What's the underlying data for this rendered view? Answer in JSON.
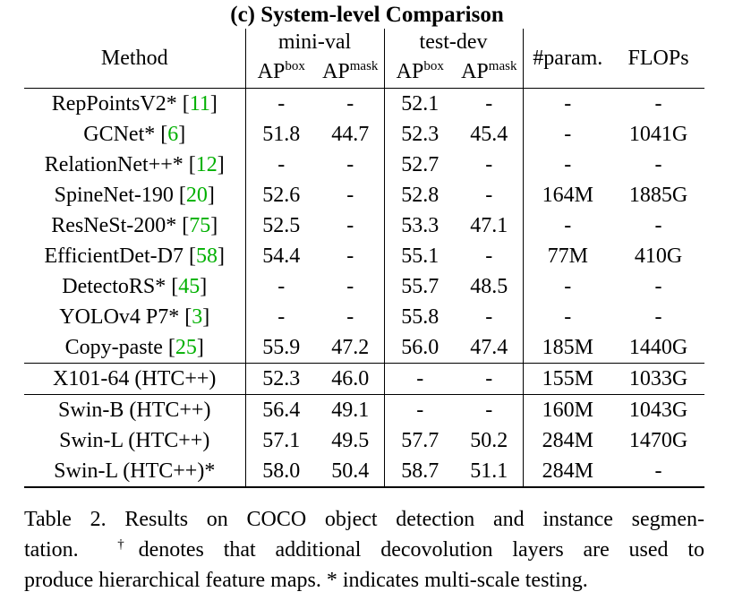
{
  "title": "(c) System-level Comparison",
  "header": {
    "method": "Method",
    "group_minival": "mini-val",
    "group_testdev": "test-dev",
    "ap": "AP",
    "box": "box",
    "mask": "mask",
    "param": "#param.",
    "flops": "FLOPs"
  },
  "rows": [
    {
      "method": "RepPointsV2* [",
      "ref": "11",
      "close": "]",
      "mv_box": "-",
      "mv_mask": "-",
      "td_box": "52.1",
      "td_mask": "-",
      "param": "-",
      "flops": "-"
    },
    {
      "method": "GCNet* [",
      "ref": "6",
      "close": "]",
      "mv_box": "51.8",
      "mv_mask": "44.7",
      "td_box": "52.3",
      "td_mask": "45.4",
      "param": "-",
      "flops": "1041G"
    },
    {
      "method": "RelationNet++* [",
      "ref": "12",
      "close": "]",
      "mv_box": "-",
      "mv_mask": "-",
      "td_box": "52.7",
      "td_mask": "-",
      "param": "-",
      "flops": "-"
    },
    {
      "method": "SpineNet-190 [",
      "ref": "20",
      "close": "]",
      "mv_box": "52.6",
      "mv_mask": "-",
      "td_box": "52.8",
      "td_mask": "-",
      "param": "164M",
      "flops": "1885G"
    },
    {
      "method": "ResNeSt-200* [",
      "ref": "75",
      "close": "]",
      "mv_box": "52.5",
      "mv_mask": "-",
      "td_box": "53.3",
      "td_mask": "47.1",
      "param": "-",
      "flops": "-"
    },
    {
      "method": "EfficientDet-D7 [",
      "ref": "58",
      "close": "]",
      "mv_box": "54.4",
      "mv_mask": "-",
      "td_box": "55.1",
      "td_mask": "-",
      "param": "77M",
      "flops": "410G"
    },
    {
      "method": "DetectoRS* [",
      "ref": "45",
      "close": "]",
      "mv_box": "-",
      "mv_mask": "-",
      "td_box": "55.7",
      "td_mask": "48.5",
      "param": "-",
      "flops": "-"
    },
    {
      "method": "YOLOv4 P7* [",
      "ref": "3",
      "close": "]",
      "mv_box": "-",
      "mv_mask": "-",
      "td_box": "55.8",
      "td_mask": "-",
      "param": "-",
      "flops": "-"
    },
    {
      "method": "Copy-paste [",
      "ref": "25",
      "close": "]",
      "mv_box": "55.9",
      "mv_mask": "47.2",
      "td_box": "56.0",
      "td_mask": "47.4",
      "param": "185M",
      "flops": "1440G"
    },
    {
      "method": "X101-64 (HTC++)",
      "mv_box": "52.3",
      "mv_mask": "46.0",
      "td_box": "-",
      "td_mask": "-",
      "param": "155M",
      "flops": "1033G"
    },
    {
      "method": "Swin-B (HTC++)",
      "mv_box": "56.4",
      "mv_mask": "49.1",
      "td_box": "-",
      "td_mask": "-",
      "param": "160M",
      "flops": "1043G"
    },
    {
      "method": "Swin-L (HTC++)",
      "mv_box": "57.1",
      "mv_mask": "49.5",
      "td_box": "57.7",
      "td_mask": "50.2",
      "param": "284M",
      "flops": "1470G"
    },
    {
      "method": "Swin-L (HTC++)*",
      "mv_box": "58.0",
      "mv_mask": "50.4",
      "td_box": "58.7",
      "td_mask": "51.1",
      "param": "284M",
      "flops": "-"
    }
  ],
  "caption": {
    "line1": "Table 2. Results on COCO object detection and instance segmen-",
    "line2_pre": "tation.",
    "dagger": "†",
    "line2_post": "denotes that additional decovolution layers are used to",
    "line3": "produce hierarchical feature maps. * indicates multi-scale testing."
  },
  "colors": {
    "ref": "#00b000"
  }
}
